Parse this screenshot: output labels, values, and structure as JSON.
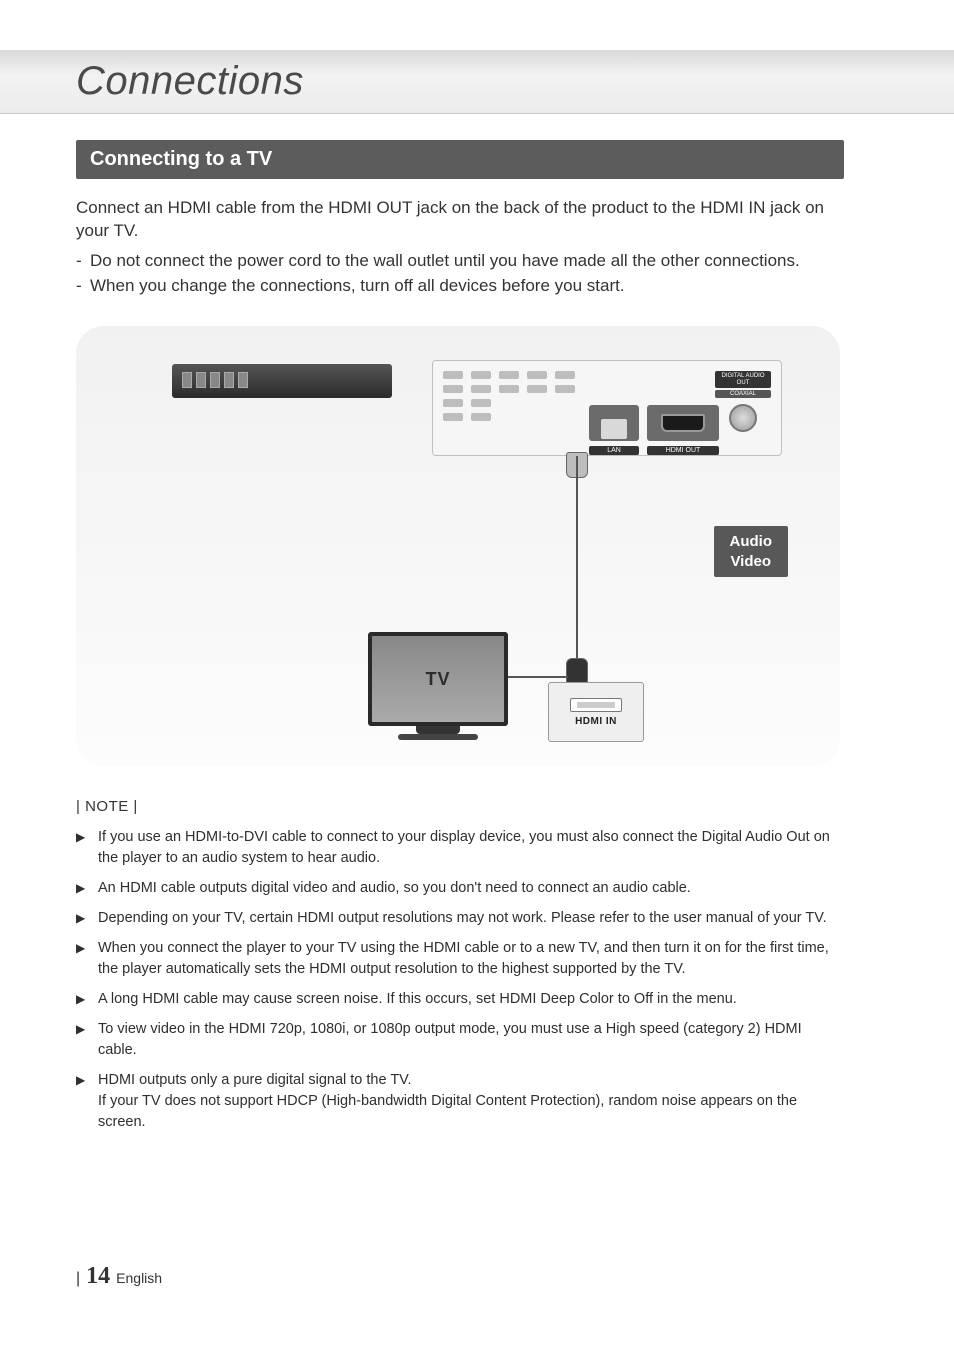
{
  "header": {
    "title": "Connections"
  },
  "section": {
    "title": "Connecting to a TV"
  },
  "intro": "Connect an HDMI cable from the HDMI OUT jack on the back of the product to the HDMI IN jack on your TV.",
  "dash_items": [
    "Do not connect the power cord to the wall outlet until you have made all the other connections.",
    "When you change the connections, turn off all devices before you start."
  ],
  "diagram": {
    "lan_label": "LAN",
    "hdmi_out_label": "HDMI OUT",
    "digital_audio_label": "DIGITAL AUDIO OUT",
    "coaxial_label": "COAXIAL",
    "av_badge_line1": "Audio",
    "av_badge_line2": "Video",
    "tv_label": "TV",
    "hdmi_in_label": "HDMI IN"
  },
  "note_head": "| NOTE |",
  "notes": [
    "If you use an HDMI-to-DVI cable to connect to your display device, you must also connect the Digital Audio Out on the player to an audio system to hear audio.",
    "An HDMI cable outputs digital video and audio, so you don't need to connect an audio cable.",
    "Depending on your TV, certain HDMI output resolutions may not work. Please refer to the user manual of your TV.",
    "When you connect the player to your TV using the HDMI cable or to a new TV, and then turn it on for the first time, the player automatically sets the HDMI output resolution to the highest supported by the TV.",
    "A long HDMI cable may cause screen noise. If this occurs, set HDMI Deep Color to Off in the menu.",
    "To view video in the HDMI 720p, 1080i, or 1080p output mode, you must use a High speed (category 2) HDMI cable.",
    "HDMI outputs only a pure digital signal to the TV.\nIf your TV does not support HDCP (High-bandwidth Digital Content Protection), random noise appears on the screen."
  ],
  "footer": {
    "page": "14",
    "lang": "English"
  },
  "colors": {
    "section_bar_bg": "#5c5c5c",
    "av_badge_bg": "#585858",
    "diagram_bg_top": "#f1f1f1",
    "diagram_bg_bot": "#fcfcfc"
  }
}
